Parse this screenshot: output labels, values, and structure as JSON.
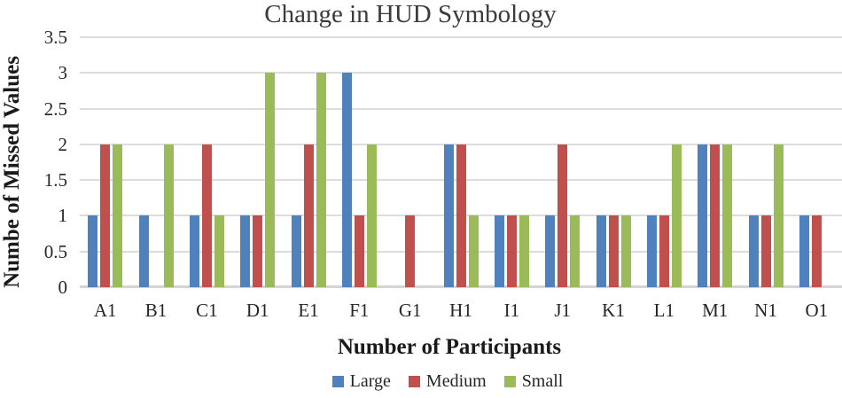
{
  "chart_data": {
    "type": "bar",
    "title": "Change in HUD Symbology",
    "xlabel": "Number of Participants",
    "ylabel": "Numbe of Missed Values",
    "categories": [
      "A1",
      "B1",
      "C1",
      "D1",
      "E1",
      "F1",
      "G1",
      "H1",
      "I1",
      "J1",
      "K1",
      "L1",
      "M1",
      "N1",
      "O1"
    ],
    "series": [
      {
        "name": "Large",
        "color": "#4F81BD",
        "values": [
          1,
          1,
          1,
          1,
          1,
          3,
          0,
          2,
          1,
          1,
          1,
          1,
          2,
          1,
          1
        ]
      },
      {
        "name": "Medium",
        "color": "#C0504D",
        "values": [
          2,
          0,
          2,
          1,
          2,
          1,
          1,
          2,
          1,
          2,
          1,
          1,
          2,
          1,
          1
        ]
      },
      {
        "name": "Small",
        "color": "#9BBB59",
        "values": [
          2,
          2,
          1,
          3,
          3,
          2,
          0,
          1,
          1,
          1,
          1,
          2,
          2,
          2,
          0
        ]
      }
    ],
    "ylim": [
      0,
      3.5
    ],
    "ytick_step": 0.5,
    "yticks": [
      "0",
      "0.5",
      "1",
      "1.5",
      "2",
      "2.5",
      "3",
      "3.5"
    ],
    "grid": true,
    "legend_position": "bottom",
    "colors": {
      "gridline": "#DCDCDC",
      "baseline": "#D4D4D4",
      "title_text": "#3B3B3B",
      "axis_text": "#262626"
    }
  }
}
